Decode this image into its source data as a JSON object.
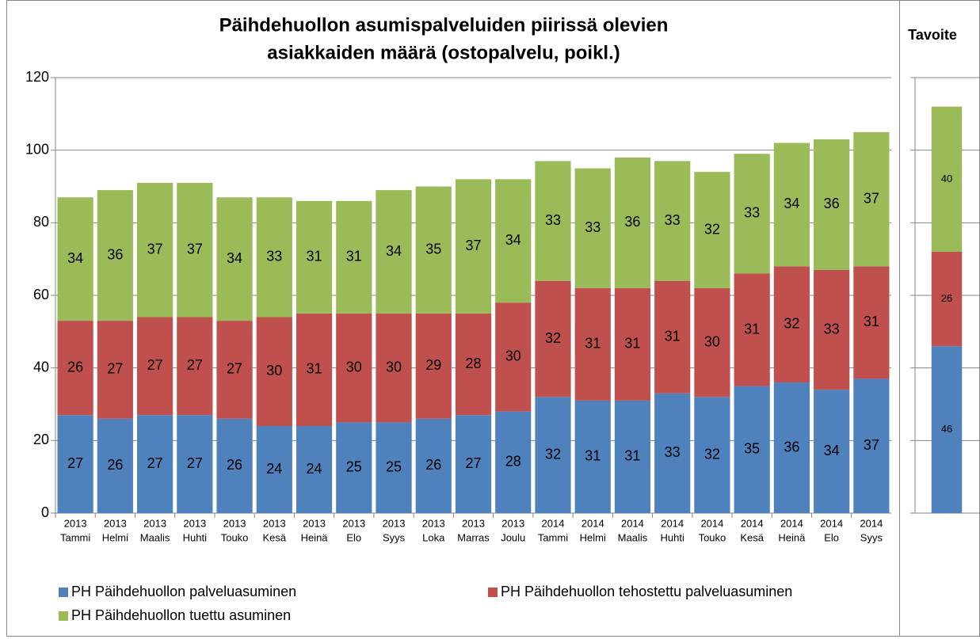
{
  "chart_data": [
    {
      "type": "bar",
      "stacked": true,
      "title": [
        "Päihdehuollon asumispalveluiden piirissä olevien",
        "asiakkaiden määrä (ostopalvelu, poikl.)"
      ],
      "categories": [
        [
          "2013",
          "Tammi"
        ],
        [
          "2013",
          "Helmi"
        ],
        [
          "2013",
          "Maalis"
        ],
        [
          "2013",
          "Huhti"
        ],
        [
          "2013",
          "Touko"
        ],
        [
          "2013",
          "Kesä"
        ],
        [
          "2013",
          "Heinä"
        ],
        [
          "2013",
          "Elo"
        ],
        [
          "2013",
          "Syys"
        ],
        [
          "2013",
          "Loka"
        ],
        [
          "2013",
          "Marras"
        ],
        [
          "2013",
          "Joulu"
        ],
        [
          "2014",
          "Tammi"
        ],
        [
          "2014",
          "Helmi"
        ],
        [
          "2014",
          "Maalis"
        ],
        [
          "2014",
          "Huhti"
        ],
        [
          "2014",
          "Touko"
        ],
        [
          "2014",
          "Kesä"
        ],
        [
          "2014",
          "Heinä"
        ],
        [
          "2014",
          "Elo"
        ],
        [
          "2014",
          "Syys"
        ]
      ],
      "series": [
        {
          "name": "PH Päihdehuollon palveluasuminen",
          "color": "#4f81bd",
          "values": [
            27,
            26,
            27,
            27,
            26,
            24,
            24,
            25,
            25,
            26,
            27,
            28,
            32,
            31,
            31,
            33,
            32,
            35,
            36,
            34,
            37
          ]
        },
        {
          "name": "PH Päihdehuollon tehostettu palveluasuminen",
          "color": "#c0504d",
          "values": [
            26,
            27,
            27,
            27,
            27,
            30,
            31,
            30,
            30,
            29,
            28,
            30,
            32,
            31,
            31,
            31,
            30,
            31,
            32,
            33,
            31
          ]
        },
        {
          "name": "PH Päihdehuollon tuettu asuminen",
          "color": "#9bbb59",
          "values": [
            34,
            36,
            37,
            37,
            34,
            33,
            31,
            31,
            34,
            35,
            37,
            34,
            33,
            33,
            36,
            33,
            32,
            33,
            34,
            36,
            37
          ]
        }
      ],
      "ylim": [
        0,
        120
      ],
      "yticks": [
        0,
        20,
        40,
        60,
        80,
        100,
        120
      ],
      "grid": true,
      "legend": "bottom"
    },
    {
      "type": "bar",
      "stacked": true,
      "title": "Tavoite",
      "series": [
        {
          "color": "#4f81bd",
          "values": [
            46
          ]
        },
        {
          "color": "#c0504d",
          "values": [
            26
          ]
        },
        {
          "color": "#9bbb59",
          "values": [
            40
          ]
        }
      ],
      "ylim": [
        0,
        120
      ],
      "yticks": [
        0,
        20,
        40,
        60,
        80,
        100,
        120
      ],
      "grid": true
    }
  ]
}
